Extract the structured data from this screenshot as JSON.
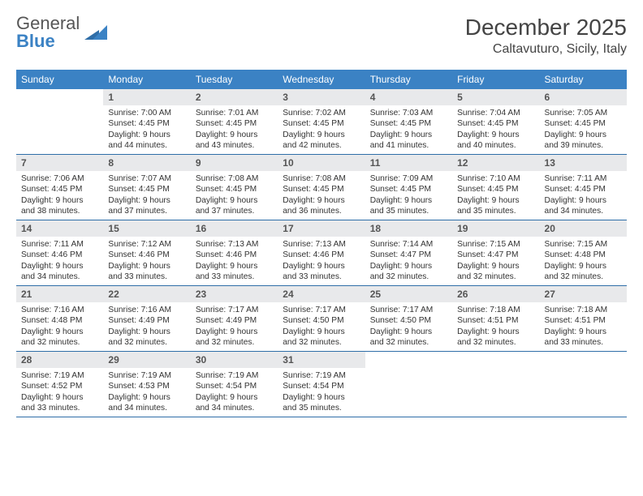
{
  "brand": {
    "word1": "General",
    "word2": "Blue"
  },
  "title": "December 2025",
  "location": "Caltavuturo, Sicily, Italy",
  "colors": {
    "header_bg": "#3b82c4",
    "header_text": "#ffffff",
    "daynum_bg": "#e8e9eb",
    "rule": "#2f6ea8"
  },
  "weekdays": [
    "Sunday",
    "Monday",
    "Tuesday",
    "Wednesday",
    "Thursday",
    "Friday",
    "Saturday"
  ],
  "weeks": [
    [
      {
        "n": "",
        "lines": []
      },
      {
        "n": "1",
        "lines": [
          "Sunrise: 7:00 AM",
          "Sunset: 4:45 PM",
          "Daylight: 9 hours and 44 minutes."
        ]
      },
      {
        "n": "2",
        "lines": [
          "Sunrise: 7:01 AM",
          "Sunset: 4:45 PM",
          "Daylight: 9 hours and 43 minutes."
        ]
      },
      {
        "n": "3",
        "lines": [
          "Sunrise: 7:02 AM",
          "Sunset: 4:45 PM",
          "Daylight: 9 hours and 42 minutes."
        ]
      },
      {
        "n": "4",
        "lines": [
          "Sunrise: 7:03 AM",
          "Sunset: 4:45 PM",
          "Daylight: 9 hours and 41 minutes."
        ]
      },
      {
        "n": "5",
        "lines": [
          "Sunrise: 7:04 AM",
          "Sunset: 4:45 PM",
          "Daylight: 9 hours and 40 minutes."
        ]
      },
      {
        "n": "6",
        "lines": [
          "Sunrise: 7:05 AM",
          "Sunset: 4:45 PM",
          "Daylight: 9 hours and 39 minutes."
        ]
      }
    ],
    [
      {
        "n": "7",
        "lines": [
          "Sunrise: 7:06 AM",
          "Sunset: 4:45 PM",
          "Daylight: 9 hours and 38 minutes."
        ]
      },
      {
        "n": "8",
        "lines": [
          "Sunrise: 7:07 AM",
          "Sunset: 4:45 PM",
          "Daylight: 9 hours and 37 minutes."
        ]
      },
      {
        "n": "9",
        "lines": [
          "Sunrise: 7:08 AM",
          "Sunset: 4:45 PM",
          "Daylight: 9 hours and 37 minutes."
        ]
      },
      {
        "n": "10",
        "lines": [
          "Sunrise: 7:08 AM",
          "Sunset: 4:45 PM",
          "Daylight: 9 hours and 36 minutes."
        ]
      },
      {
        "n": "11",
        "lines": [
          "Sunrise: 7:09 AM",
          "Sunset: 4:45 PM",
          "Daylight: 9 hours and 35 minutes."
        ]
      },
      {
        "n": "12",
        "lines": [
          "Sunrise: 7:10 AM",
          "Sunset: 4:45 PM",
          "Daylight: 9 hours and 35 minutes."
        ]
      },
      {
        "n": "13",
        "lines": [
          "Sunrise: 7:11 AM",
          "Sunset: 4:45 PM",
          "Daylight: 9 hours and 34 minutes."
        ]
      }
    ],
    [
      {
        "n": "14",
        "lines": [
          "Sunrise: 7:11 AM",
          "Sunset: 4:46 PM",
          "Daylight: 9 hours and 34 minutes."
        ]
      },
      {
        "n": "15",
        "lines": [
          "Sunrise: 7:12 AM",
          "Sunset: 4:46 PM",
          "Daylight: 9 hours and 33 minutes."
        ]
      },
      {
        "n": "16",
        "lines": [
          "Sunrise: 7:13 AM",
          "Sunset: 4:46 PM",
          "Daylight: 9 hours and 33 minutes."
        ]
      },
      {
        "n": "17",
        "lines": [
          "Sunrise: 7:13 AM",
          "Sunset: 4:46 PM",
          "Daylight: 9 hours and 33 minutes."
        ]
      },
      {
        "n": "18",
        "lines": [
          "Sunrise: 7:14 AM",
          "Sunset: 4:47 PM",
          "Daylight: 9 hours and 32 minutes."
        ]
      },
      {
        "n": "19",
        "lines": [
          "Sunrise: 7:15 AM",
          "Sunset: 4:47 PM",
          "Daylight: 9 hours and 32 minutes."
        ]
      },
      {
        "n": "20",
        "lines": [
          "Sunrise: 7:15 AM",
          "Sunset: 4:48 PM",
          "Daylight: 9 hours and 32 minutes."
        ]
      }
    ],
    [
      {
        "n": "21",
        "lines": [
          "Sunrise: 7:16 AM",
          "Sunset: 4:48 PM",
          "Daylight: 9 hours and 32 minutes."
        ]
      },
      {
        "n": "22",
        "lines": [
          "Sunrise: 7:16 AM",
          "Sunset: 4:49 PM",
          "Daylight: 9 hours and 32 minutes."
        ]
      },
      {
        "n": "23",
        "lines": [
          "Sunrise: 7:17 AM",
          "Sunset: 4:49 PM",
          "Daylight: 9 hours and 32 minutes."
        ]
      },
      {
        "n": "24",
        "lines": [
          "Sunrise: 7:17 AM",
          "Sunset: 4:50 PM",
          "Daylight: 9 hours and 32 minutes."
        ]
      },
      {
        "n": "25",
        "lines": [
          "Sunrise: 7:17 AM",
          "Sunset: 4:50 PM",
          "Daylight: 9 hours and 32 minutes."
        ]
      },
      {
        "n": "26",
        "lines": [
          "Sunrise: 7:18 AM",
          "Sunset: 4:51 PM",
          "Daylight: 9 hours and 32 minutes."
        ]
      },
      {
        "n": "27",
        "lines": [
          "Sunrise: 7:18 AM",
          "Sunset: 4:51 PM",
          "Daylight: 9 hours and 33 minutes."
        ]
      }
    ],
    [
      {
        "n": "28",
        "lines": [
          "Sunrise: 7:19 AM",
          "Sunset: 4:52 PM",
          "Daylight: 9 hours and 33 minutes."
        ]
      },
      {
        "n": "29",
        "lines": [
          "Sunrise: 7:19 AM",
          "Sunset: 4:53 PM",
          "Daylight: 9 hours and 34 minutes."
        ]
      },
      {
        "n": "30",
        "lines": [
          "Sunrise: 7:19 AM",
          "Sunset: 4:54 PM",
          "Daylight: 9 hours and 34 minutes."
        ]
      },
      {
        "n": "31",
        "lines": [
          "Sunrise: 7:19 AM",
          "Sunset: 4:54 PM",
          "Daylight: 9 hours and 35 minutes."
        ]
      },
      {
        "n": "",
        "lines": []
      },
      {
        "n": "",
        "lines": []
      },
      {
        "n": "",
        "lines": []
      }
    ]
  ]
}
